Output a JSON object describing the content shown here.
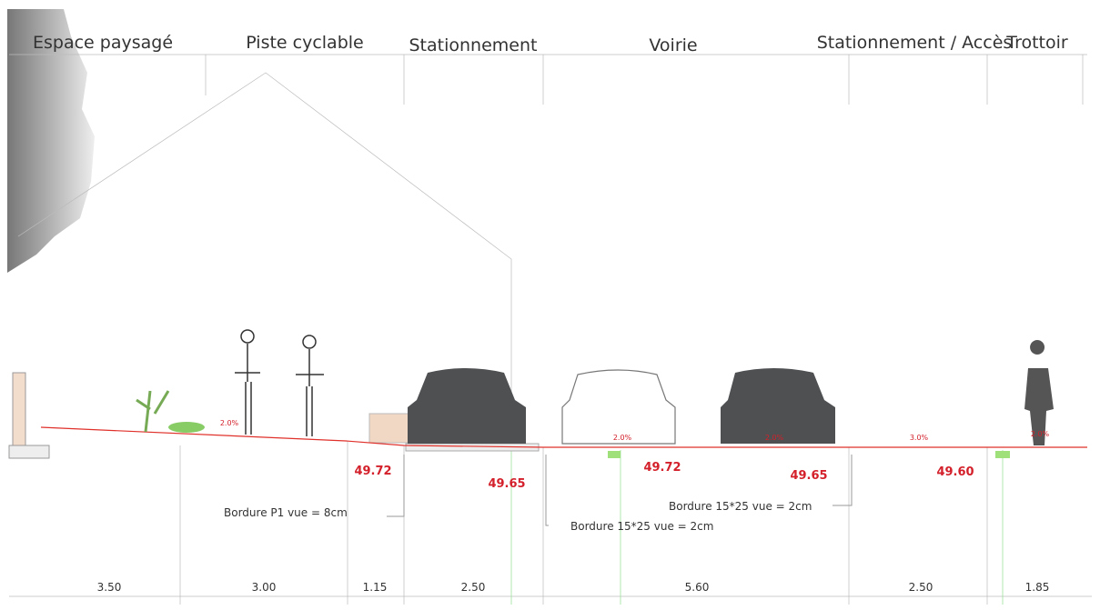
{
  "zones": [
    "Espace paysagé",
    "Piste cyclable",
    "Stationnement",
    "Voirie",
    "Stationnement / Accès",
    "Trottoir"
  ],
  "dimensions": [
    "3.50",
    "3.00",
    "1.15",
    "2.50",
    "5.60",
    "2.50",
    "1.85"
  ],
  "elevations": [
    "49.72",
    "49.65",
    "49.72",
    "49.65",
    "49.60"
  ],
  "slopes": [
    "2.0%",
    "2.0%",
    "2.0%",
    "3.0%",
    "2.0%"
  ],
  "notes": [
    "Bordure P1 vue = 8cm",
    "Bordure 15*25 vue = 2cm",
    "Bordure 15*25 vue = 2cm"
  ]
}
